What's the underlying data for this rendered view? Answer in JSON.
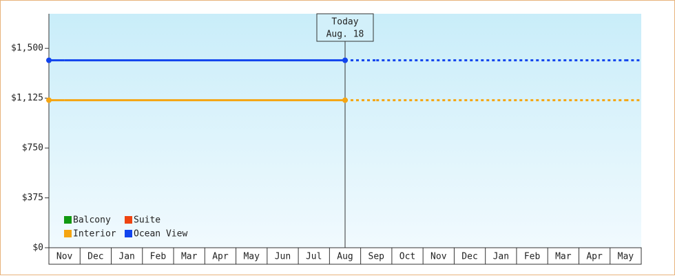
{
  "chart_data": {
    "type": "line",
    "categories": [
      "Nov",
      "Dec",
      "Jan",
      "Feb",
      "Mar",
      "Apr",
      "May",
      "Jun",
      "Jul",
      "Aug",
      "Sep",
      "Oct",
      "Nov",
      "Dec",
      "Jan",
      "Feb",
      "Mar",
      "Apr",
      "May"
    ],
    "series": [
      {
        "name": "Balcony",
        "color": "#119911",
        "values": [
          null,
          null,
          null,
          null,
          null,
          null,
          null,
          null,
          null,
          null,
          null,
          null,
          null,
          null,
          null,
          null,
          null,
          null,
          null
        ]
      },
      {
        "name": "Suite",
        "color": "#ee4411",
        "values": [
          null,
          null,
          null,
          null,
          null,
          null,
          null,
          null,
          null,
          null,
          null,
          null,
          null,
          null,
          null,
          null,
          null,
          null,
          null
        ]
      },
      {
        "name": "Interior",
        "color": "#f5a511",
        "values": [
          1110,
          1110,
          1110,
          1110,
          1110,
          1110,
          1110,
          1110,
          1110,
          1110,
          1110,
          1110,
          1110,
          1110,
          1110,
          1110,
          1110,
          1110,
          1110
        ]
      },
      {
        "name": "Ocean View",
        "color": "#1144ee",
        "values": [
          1410,
          1410,
          1410,
          1410,
          1410,
          1410,
          1410,
          1410,
          1410,
          1410,
          1410,
          1410,
          1410,
          1410,
          1410,
          1410,
          1410,
          1410,
          1410
        ]
      }
    ],
    "ylim": [
      0,
      1760
    ],
    "yticks": [
      {
        "value": 0,
        "label": "$0"
      },
      {
        "value": 375,
        "label": "$375"
      },
      {
        "value": 750,
        "label": "$750"
      },
      {
        "value": 1125,
        "label": "$1,125"
      },
      {
        "value": 1500,
        "label": "$1,500"
      }
    ],
    "annotation": {
      "lines": [
        "Today",
        "Aug. 18"
      ],
      "category": "Aug"
    }
  }
}
